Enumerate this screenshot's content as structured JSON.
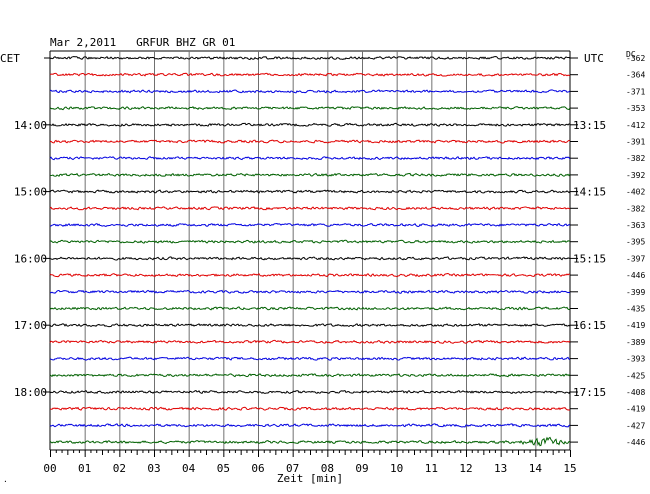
{
  "header": {
    "title": "Mar 2,2011   GRFUR BHZ GR 01",
    "left_tz": "CET",
    "right_tz": "UTC",
    "dc_label": "DC"
  },
  "chart_data": {
    "type": "line",
    "xlabel": "Zeit [min]",
    "xlim": [
      0,
      15
    ],
    "x_ticks": [
      "00",
      "01",
      "02",
      "03",
      "04",
      "05",
      "06",
      "07",
      "08",
      "09",
      "10",
      "11",
      "12",
      "13",
      "14",
      "15"
    ],
    "grid": true,
    "left_hour_labels": [
      "14:00",
      "15:00",
      "16:00",
      "17:00",
      "18:00"
    ],
    "right_hour_labels": [
      "13:15",
      "14:15",
      "15:15",
      "16:15",
      "17:15"
    ],
    "trace_colors": [
      "#000000",
      "#e00000",
      "#0000e0",
      "#006000"
    ],
    "dc_values": [
      -362,
      -364,
      -371,
      -353,
      -412,
      -391,
      -382,
      -392,
      -402,
      -382,
      -363,
      -395,
      -397,
      -446,
      -399,
      -435,
      -419,
      -389,
      -393,
      -425,
      -408,
      -419,
      -427,
      -446
    ],
    "traces_count": 24,
    "event_trace": 23,
    "event_x_range": [
      12.8,
      15
    ]
  },
  "footer": {
    "corner_mark": "·"
  }
}
